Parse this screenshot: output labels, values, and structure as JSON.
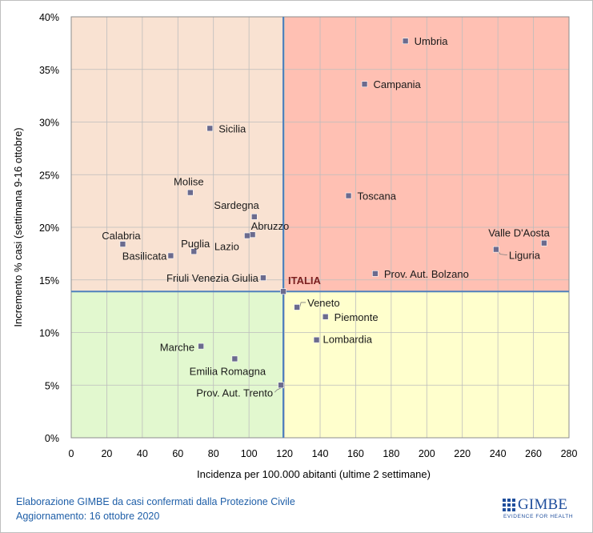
{
  "chart_data": {
    "type": "scatter",
    "xlabel": "Incidenza per 100.000 abitanti (ultime 2 settimane)",
    "ylabel": "Incremento % casi (settimana 9-16 ottobre)",
    "xlim": [
      0,
      280
    ],
    "ylim": [
      0,
      40
    ],
    "x_ticks": [
      0,
      20,
      40,
      60,
      80,
      100,
      120,
      140,
      160,
      180,
      200,
      220,
      240,
      260,
      280
    ],
    "y_ticks": [
      0,
      5,
      10,
      15,
      20,
      25,
      30,
      35,
      40
    ],
    "y_tick_format": "percent",
    "grid": true,
    "legend": "none",
    "reference_lines": {
      "x": 119.3,
      "y": 13.9
    },
    "quadrant_colors": {
      "top_left": "#f9e2d2",
      "top_right": "#ffc0b3",
      "bottom_left": "#e2f8cf",
      "bottom_right": "#ffffcd"
    },
    "marker_color": "#6b6b8e",
    "reference_line_color": "#4f81bd",
    "points": [
      {
        "label": "Umbria",
        "x": 188,
        "y": 37.7
      },
      {
        "label": "Campania",
        "x": 165,
        "y": 33.6
      },
      {
        "label": "Sicilia",
        "x": 78,
        "y": 29.4
      },
      {
        "label": "Molise",
        "x": 67,
        "y": 23.3
      },
      {
        "label": "Toscana",
        "x": 156,
        "y": 23.0
      },
      {
        "label": "Sardegna",
        "x": 103,
        "y": 21.0
      },
      {
        "label": "Abruzzo",
        "x": 102,
        "y": 19.3
      },
      {
        "label": "Lazio",
        "x": 99,
        "y": 19.2
      },
      {
        "label": "Puglia",
        "x": 69,
        "y": 17.7
      },
      {
        "label": "Calabria",
        "x": 29,
        "y": 18.4
      },
      {
        "label": "Basilicata",
        "x": 56,
        "y": 17.3
      },
      {
        "label": "Valle D'Aosta",
        "x": 266,
        "y": 18.5
      },
      {
        "label": "Liguria",
        "x": 239,
        "y": 17.9
      },
      {
        "label": "Friuli Venezia Giulia",
        "x": 108,
        "y": 15.2
      },
      {
        "label": "Prov. Aut. Bolzano",
        "x": 171,
        "y": 15.6
      },
      {
        "label": "ITALIA",
        "x": 119.3,
        "y": 13.9
      },
      {
        "label": "Veneto",
        "x": 127,
        "y": 12.4
      },
      {
        "label": "Piemonte",
        "x": 143,
        "y": 11.5
      },
      {
        "label": "Lombardia",
        "x": 138,
        "y": 9.3
      },
      {
        "label": "Marche",
        "x": 73,
        "y": 8.7
      },
      {
        "label": "Emilia Romagna",
        "x": 92,
        "y": 7.5
      },
      {
        "label": "Prov. Aut. Trento",
        "x": 118,
        "y": 5.0
      }
    ]
  },
  "footer": {
    "line1": "Elaborazione GIMBE da casi confermati dalla Protezione Civile",
    "line2": "Aggiornamento: 16 ottobre 2020"
  },
  "logo": {
    "name": "GIMBE",
    "tagline": "EVIDENCE FOR HEALTH"
  }
}
